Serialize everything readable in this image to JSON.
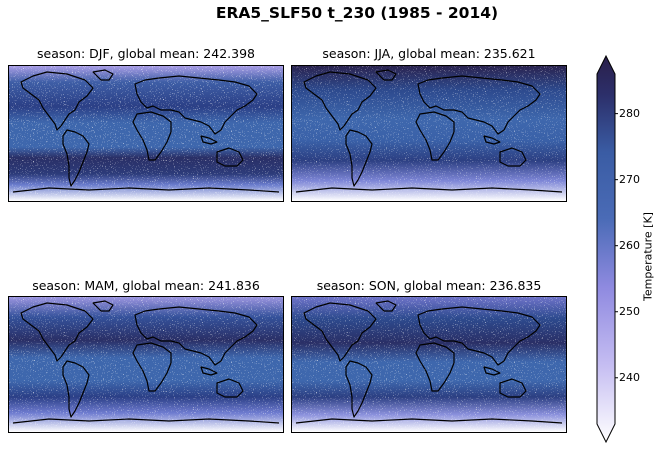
{
  "figure": {
    "title": "ERA5_SLF50 t_230 (1985 - 2014)"
  },
  "panels": [
    {
      "id": "djf",
      "title": "season: DJF, global mean: 242.398",
      "season": "DJF",
      "global_mean": 242.398
    },
    {
      "id": "jja",
      "title": "season: JJA, global mean: 235.621",
      "season": "JJA",
      "global_mean": 235.621
    },
    {
      "id": "mam",
      "title": "season: MAM, global mean: 241.836",
      "season": "MAM",
      "global_mean": 241.836
    },
    {
      "id": "son",
      "title": "season: SON, global mean: 236.835",
      "season": "SON",
      "global_mean": 236.835
    }
  ],
  "colorbar": {
    "label": "Temperature [K]",
    "ticks": [
      "280",
      "270",
      "260",
      "250",
      "240"
    ],
    "range": [
      233,
      286
    ],
    "colors": {
      "low": "#ffffff",
      "mid_low": "#b8b0ee",
      "mid": "#3d63a8",
      "high": "#2a1f4a"
    }
  }
}
